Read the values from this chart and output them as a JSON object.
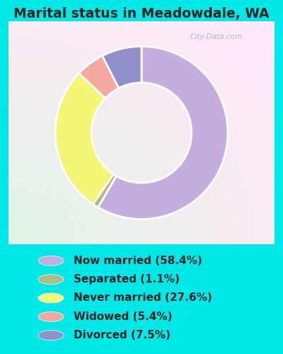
{
  "title": "Marital status in Meadowdale, WA",
  "slices": [
    58.4,
    1.1,
    27.6,
    5.4,
    7.5
  ],
  "labels": [
    "Now married (58.4%)",
    "Separated (1.1%)",
    "Never married (27.6%)",
    "Widowed (5.4%)",
    "Divorced (7.5%)"
  ],
  "colors": [
    "#c4aee0",
    "#b0bc82",
    "#f5f576",
    "#f5a8a0",
    "#9090cc"
  ],
  "bg_cyan": "#00e8e8",
  "title_color": "#222222",
  "title_fontsize": 13.5,
  "legend_fontsize": 11,
  "watermark": "City-Data.com",
  "start_angle": 90,
  "donut_width": 0.42,
  "chart_bg_colors": [
    "#d0ebe0",
    "#e8f5ee",
    "#f0faf4"
  ]
}
